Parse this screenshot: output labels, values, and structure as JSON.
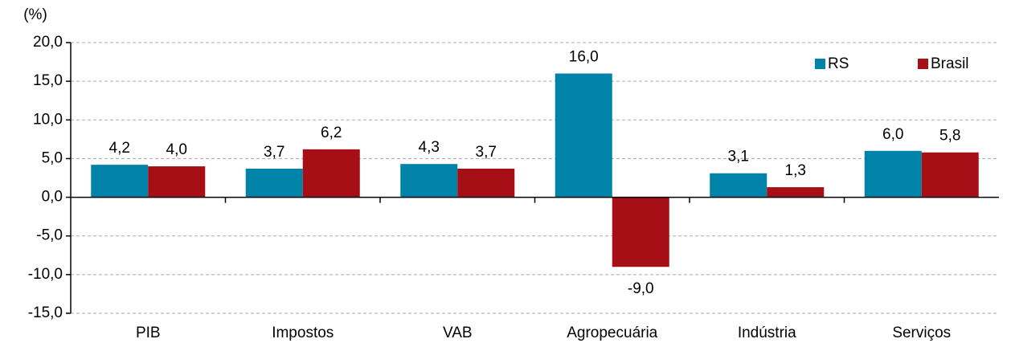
{
  "chart_data": {
    "type": "bar",
    "y_label": "(%)",
    "categories": [
      "PIB",
      "Impostos",
      "VAB",
      "Agropecuária",
      "Indústria",
      "Serviços"
    ],
    "series": [
      {
        "name": "RS",
        "color": "#0083a9",
        "values": [
          4.2,
          3.7,
          4.3,
          16.0,
          3.1,
          6.0
        ],
        "value_labels": [
          "4,2",
          "3,7",
          "4,3",
          "16,0",
          "3,1",
          "6,0"
        ]
      },
      {
        "name": "Brasil",
        "color": "#a50f15",
        "values": [
          4.0,
          6.2,
          3.7,
          -9.0,
          1.3,
          5.8
        ],
        "value_labels": [
          "4,0",
          "6,2",
          "3,7",
          "-9,0",
          "1,3",
          "5,8"
        ]
      }
    ],
    "ylim": [
      -15,
      20
    ],
    "yticks": [
      {
        "value": -15,
        "label": "-15,0"
      },
      {
        "value": -10,
        "label": "-10,0"
      },
      {
        "value": -5,
        "label": "-5,0"
      },
      {
        "value": 0,
        "label": "0,0"
      },
      {
        "value": 5,
        "label": "5,0"
      },
      {
        "value": 10,
        "label": "10,0"
      },
      {
        "value": 15,
        "label": "15,0"
      },
      {
        "value": 20,
        "label": "20,0"
      }
    ],
    "grid": true,
    "legend": "top-right"
  }
}
